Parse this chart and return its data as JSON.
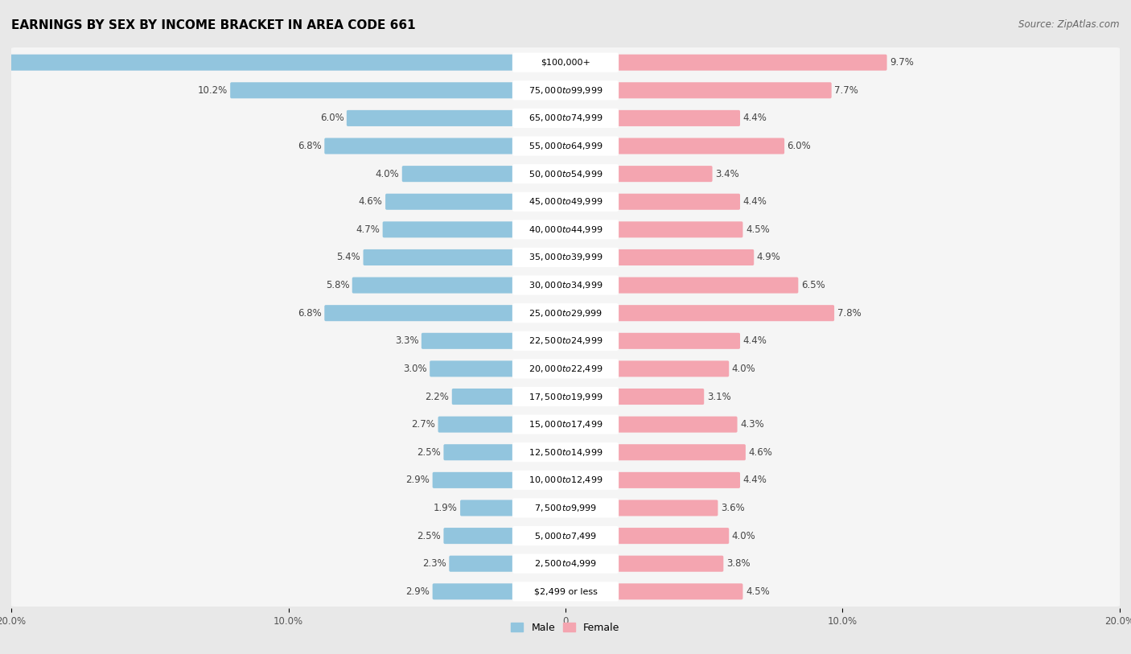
{
  "title": "EARNINGS BY SEX BY INCOME BRACKET IN AREA CODE 661",
  "source": "Source: ZipAtlas.com",
  "categories": [
    "$2,499 or less",
    "$2,500 to $4,999",
    "$5,000 to $7,499",
    "$7,500 to $9,999",
    "$10,000 to $12,499",
    "$12,500 to $14,999",
    "$15,000 to $17,499",
    "$17,500 to $19,999",
    "$20,000 to $22,499",
    "$22,500 to $24,999",
    "$25,000 to $29,999",
    "$30,000 to $34,999",
    "$35,000 to $39,999",
    "$40,000 to $44,999",
    "$45,000 to $49,999",
    "$50,000 to $54,999",
    "$55,000 to $64,999",
    "$65,000 to $74,999",
    "$75,000 to $99,999",
    "$100,000+"
  ],
  "male_values": [
    2.9,
    2.3,
    2.5,
    1.9,
    2.9,
    2.5,
    2.7,
    2.2,
    3.0,
    3.3,
    6.8,
    5.8,
    5.4,
    4.7,
    4.6,
    4.0,
    6.8,
    6.0,
    10.2,
    19.4
  ],
  "female_values": [
    4.5,
    3.8,
    4.0,
    3.6,
    4.4,
    4.6,
    4.3,
    3.1,
    4.0,
    4.4,
    7.8,
    6.5,
    4.9,
    4.5,
    4.4,
    3.4,
    6.0,
    4.4,
    7.7,
    9.7
  ],
  "male_color": "#92c5de",
  "female_color": "#f4a5b0",
  "male_label": "Male",
  "female_label": "Female",
  "axis_max": 20.0,
  "background_color": "#e8e8e8",
  "row_bg_color": "#f5f5f5",
  "label_bg_color": "#ffffff",
  "title_fontsize": 11,
  "source_fontsize": 8.5,
  "label_fontsize": 8.5,
  "category_fontsize": 8.0,
  "tick_fontsize": 8.5
}
